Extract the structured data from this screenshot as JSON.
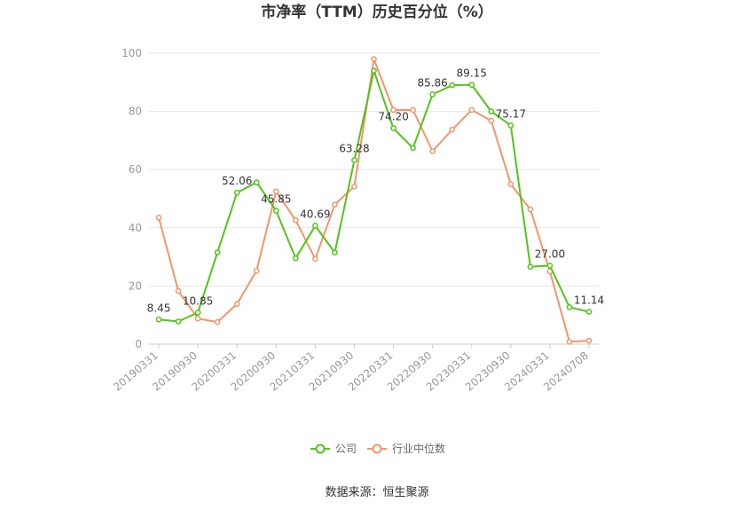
{
  "chart_data": {
    "type": "line",
    "title": "市净率（TTM）历史百分位（%）",
    "xlabel": "",
    "ylabel": "",
    "ylim": [
      0,
      100
    ],
    "yticks": [
      0,
      20,
      40,
      60,
      80,
      100
    ],
    "grid": true,
    "legend_position": "bottom",
    "tick_labels": [
      "20190331",
      "20190930",
      "20200331",
      "20200930",
      "20210331",
      "20210930",
      "20220331",
      "20220930",
      "20230331",
      "20230930",
      "20240331",
      "20240708"
    ],
    "x_count": 23,
    "tick_indices": [
      0,
      2,
      4,
      6,
      8,
      10,
      12,
      14,
      16,
      18,
      20,
      22
    ],
    "series": [
      {
        "name": "公司",
        "color": "#52c41a",
        "values": [
          8.45,
          7.8,
          10.85,
          31.5,
          52.06,
          55.6,
          45.85,
          29.5,
          40.69,
          31.5,
          63.28,
          94.0,
          74.2,
          67.4,
          85.86,
          89.0,
          89.15,
          80.0,
          75.17,
          26.6,
          27.0,
          12.7,
          11.14
        ],
        "labels": {
          "0": "8.45",
          "2": "10.85",
          "4": "52.06",
          "6": "45.85",
          "8": "40.69",
          "10": "63.28",
          "12": "74.20",
          "14": "85.86",
          "16": "89.15",
          "18": "75.17",
          "20": "27.00",
          "22": "11.14"
        }
      },
      {
        "name": "行业中位数",
        "color": "#f4956a",
        "values": [
          43.5,
          18.3,
          8.8,
          7.6,
          13.8,
          25.2,
          52.5,
          42.6,
          29.3,
          48.0,
          54.2,
          98.0,
          80.5,
          80.5,
          66.3,
          73.7,
          80.5,
          76.8,
          55.0,
          46.3,
          25.0,
          0.8,
          1.2
        ]
      }
    ],
    "source": "数据来源：恒生聚源"
  }
}
